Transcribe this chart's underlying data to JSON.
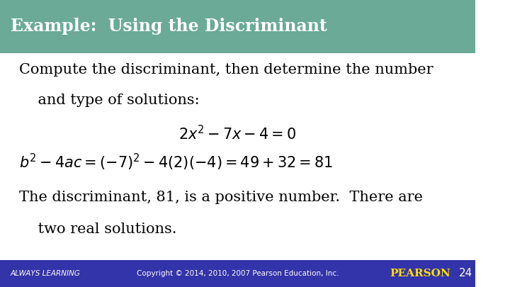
{
  "title": "Example:  Using the Discriminant",
  "title_bg": "#6aaa96",
  "title_text_color": "#ffffff",
  "body_bg": "#ffffff",
  "footer_bg": "#3333aa",
  "footer_text_color": "#ffffff",
  "footer_left": "ALWAYS LEARNING",
  "footer_center": "Copyright © 2014, 2010, 2007 Pearson Education, Inc.",
  "footer_right": "PEARSON",
  "footer_page": "24",
  "line1": "Compute the discriminant, then determine the number",
  "line2": "    and type of solutions:",
  "eq1": "2x^2 - 7x - 4 = 0",
  "eq2": "b^2 - 4ac = (-7)^2 - 4(2)(-4) = 49 + 32 = 81",
  "line3": "The discriminant, 81, is a positive number.  There are",
  "line4": "    two real solutions.",
  "body_text_color": "#000000",
  "body_fontsize": 15,
  "title_fontsize": 17
}
